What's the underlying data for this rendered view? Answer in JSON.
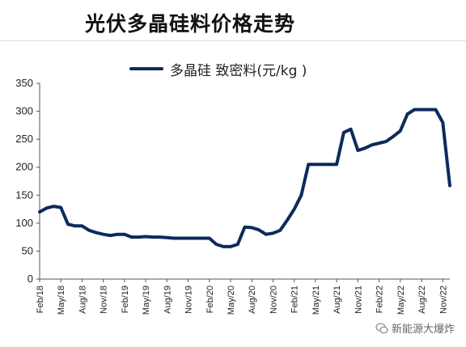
{
  "title": "光伏多晶硅料价格走势",
  "watermark": {
    "text": "新能源大爆炸",
    "icon": "wechat-icon"
  },
  "colors": {
    "line": "#0d2a5c",
    "axis": "#555555"
  },
  "chart_data": {
    "type": "line",
    "title": "光伏多晶硅料价格走势",
    "legend_position": "top-center",
    "grid": false,
    "ylim": [
      0,
      350
    ],
    "yticks": [
      0,
      50,
      100,
      150,
      200,
      250,
      300,
      350
    ],
    "xlim": [
      "2018-02",
      "2022-12"
    ],
    "xticks": [
      "Feb/18",
      "May/18",
      "Aug/18",
      "Nov/18",
      "Feb/19",
      "May/19",
      "Aug/19",
      "Nov/19",
      "Feb/20",
      "May/20",
      "Aug/20",
      "Nov/20",
      "Feb/21",
      "May/21",
      "Aug/21",
      "Nov/21",
      "Feb/22",
      "May/22",
      "Aug/22",
      "Nov/22"
    ],
    "series": [
      {
        "name": "多晶硅 致密料(元/kg )",
        "x": [
          "2018-02",
          "2018-03",
          "2018-04",
          "2018-05",
          "2018-06",
          "2018-07",
          "2018-08",
          "2018-09",
          "2018-10",
          "2018-11",
          "2018-12",
          "2019-01",
          "2019-02",
          "2019-03",
          "2019-04",
          "2019-05",
          "2019-06",
          "2019-07",
          "2019-08",
          "2019-09",
          "2019-10",
          "2019-11",
          "2019-12",
          "2020-01",
          "2020-02",
          "2020-03",
          "2020-04",
          "2020-05",
          "2020-06",
          "2020-07",
          "2020-08",
          "2020-09",
          "2020-10",
          "2020-11",
          "2020-12",
          "2021-01",
          "2021-02",
          "2021-03",
          "2021-04",
          "2021-05",
          "2021-06",
          "2021-07",
          "2021-08",
          "2021-09",
          "2021-10",
          "2021-11",
          "2021-12",
          "2022-01",
          "2022-02",
          "2022-03",
          "2022-04",
          "2022-05",
          "2022-06",
          "2022-07",
          "2022-08",
          "2022-09",
          "2022-10",
          "2022-11",
          "2022-12"
        ],
        "values": [
          120,
          127,
          130,
          128,
          98,
          95,
          95,
          87,
          83,
          80,
          78,
          80,
          80,
          75,
          75,
          76,
          75,
          75,
          74,
          73,
          73,
          73,
          73,
          73,
          73,
          62,
          58,
          58,
          62,
          93,
          92,
          88,
          80,
          82,
          87,
          105,
          125,
          150,
          205,
          205,
          205,
          205,
          205,
          262,
          268,
          230,
          234,
          240,
          243,
          246,
          255,
          265,
          295,
          303,
          303,
          303,
          303,
          280,
          167
        ]
      }
    ]
  }
}
